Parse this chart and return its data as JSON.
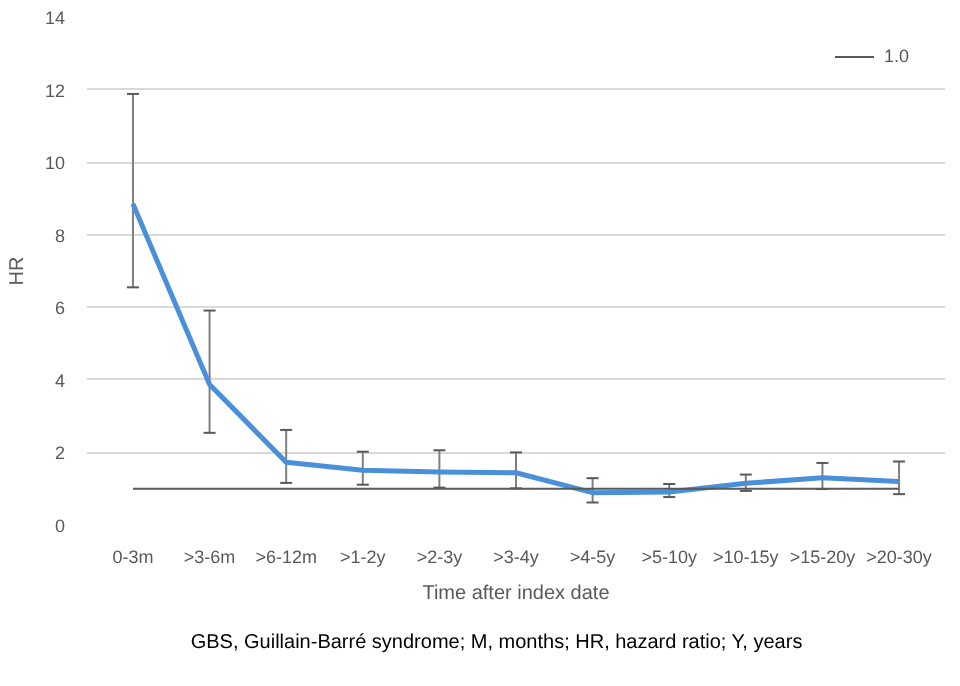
{
  "chart_data": {
    "type": "line",
    "xlabel": "Time after index date",
    "ylabel": "HR",
    "categories": [
      "0-3m",
      ">3-6m",
      ">6-12m",
      ">1-2y",
      ">2-3y",
      ">3-4y",
      ">4-5y",
      ">5-10y",
      ">10-15y",
      ">15-20y",
      ">20-30y"
    ],
    "series": [
      {
        "color": "#4a90d9",
        "values": [
          8.85,
          3.87,
          1.73,
          1.51,
          1.46,
          1.44,
          0.89,
          0.91,
          1.15,
          1.3,
          1.2
        ],
        "errors": [
          [
            6.55,
            11.88
          ],
          [
            2.54,
            5.91
          ],
          [
            1.16,
            2.62
          ],
          [
            1.11,
            2.02
          ],
          [
            1.03,
            2.06
          ],
          [
            1.01,
            2.0
          ],
          [
            0.62,
            1.29
          ],
          [
            0.77,
            1.13
          ],
          [
            0.94,
            1.39
          ],
          [
            0.99,
            1.71
          ],
          [
            0.85,
            1.75
          ]
        ]
      },
      {
        "name": "1.0",
        "color": "#595959",
        "values": [
          1,
          1,
          1,
          1,
          1,
          1,
          1,
          1,
          1,
          1,
          1
        ]
      }
    ],
    "ylim": [
      0,
      14
    ],
    "yticks": [
      0,
      2,
      4,
      6,
      8,
      10,
      12,
      14
    ],
    "grid": "y",
    "legend": "top right",
    "marker": "none",
    "line_style": "solid",
    "annotations": [
      "GBS, Guillain-Barré syndrome; M, months; HR, hazard ratio; Y, years"
    ]
  }
}
